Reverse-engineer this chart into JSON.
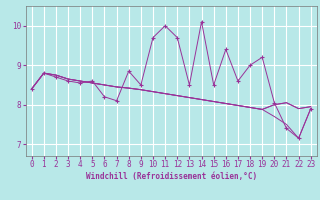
{
  "xlabel": "Windchill (Refroidissement éolien,°C)",
  "background_color": "#b8e8e8",
  "line_color": "#993399",
  "grid_color": "#ffffff",
  "xlim": [
    -0.5,
    23.5
  ],
  "ylim": [
    6.7,
    10.5
  ],
  "yticks": [
    7,
    8,
    9,
    10
  ],
  "xticks": [
    0,
    1,
    2,
    3,
    4,
    5,
    6,
    7,
    8,
    9,
    10,
    11,
    12,
    13,
    14,
    15,
    16,
    17,
    18,
    19,
    20,
    21,
    22,
    23
  ],
  "series_main": [
    8.4,
    8.8,
    8.7,
    8.6,
    8.55,
    8.6,
    8.2,
    8.1,
    8.85,
    8.5,
    9.7,
    10.0,
    9.7,
    8.5,
    10.1,
    8.5,
    9.4,
    8.6,
    9.0,
    9.2,
    8.05,
    7.4,
    7.15,
    7.9
  ],
  "series_smooth1": [
    8.4,
    8.8,
    8.75,
    8.65,
    8.6,
    8.55,
    8.5,
    8.45,
    8.42,
    8.38,
    8.33,
    8.28,
    8.23,
    8.18,
    8.13,
    8.08,
    8.03,
    7.98,
    7.93,
    7.88,
    8.0,
    8.05,
    7.9,
    7.95
  ],
  "series_smooth2": [
    8.4,
    8.8,
    8.75,
    8.65,
    8.6,
    8.55,
    8.5,
    8.45,
    8.42,
    8.38,
    8.33,
    8.28,
    8.23,
    8.18,
    8.13,
    8.08,
    8.03,
    7.98,
    7.93,
    7.88,
    7.7,
    7.5,
    7.15,
    7.9
  ],
  "series_flat": [
    8.4,
    8.8,
    8.75,
    8.65,
    8.6,
    8.55,
    8.5,
    8.45,
    8.42,
    8.38,
    8.33,
    8.28,
    8.23,
    8.18,
    8.13,
    8.08,
    8.03,
    7.98,
    7.93,
    7.88,
    8.0,
    8.05,
    7.9,
    7.95
  ]
}
